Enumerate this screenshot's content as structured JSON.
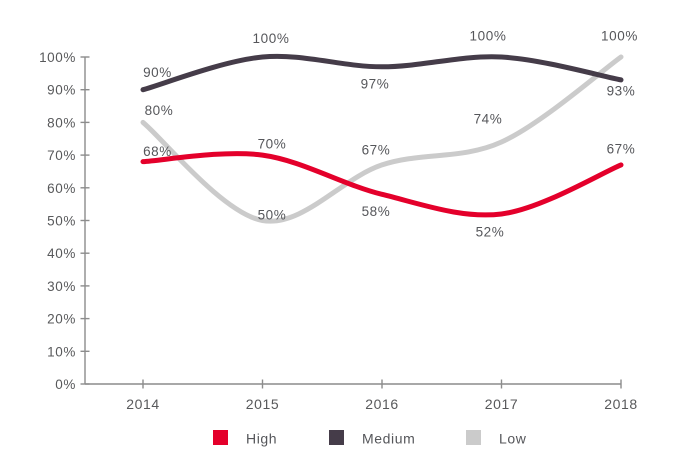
{
  "chart_data": {
    "type": "line",
    "title": "",
    "xlabel": "",
    "ylabel": "",
    "x": [
      "2014",
      "2015",
      "2016",
      "2017",
      "2018"
    ],
    "series": [
      {
        "name": "High",
        "color": "#e4002b",
        "values": [
          68,
          70,
          58,
          52,
          67
        ],
        "point_labels": [
          "68%",
          "70%",
          "58%",
          "52%",
          "67%"
        ],
        "label_offsets": [
          [
            14.5,
            -10
          ],
          [
            9.5,
            -11
          ],
          [
            -6,
            17
          ],
          [
            -11.5,
            18
          ],
          [
            0,
            -16
          ]
        ]
      },
      {
        "name": "Medium",
        "color": "#453c49",
        "values": [
          90,
          100,
          97,
          100,
          93
        ],
        "point_labels": [
          "90%",
          "100%",
          "97%",
          "100%",
          "93%"
        ],
        "label_offsets": [
          [
            14.5,
            -17
          ],
          [
            8.5,
            -18.5
          ],
          [
            -7,
            17
          ],
          [
            -13.5,
            -21
          ],
          [
            0,
            11
          ]
        ]
      },
      {
        "name": "Low",
        "color": "#cbcbcb",
        "values": [
          80,
          50,
          67,
          74,
          100
        ],
        "point_labels": [
          "80%",
          "50%",
          "67%",
          "74%",
          "100%"
        ],
        "label_offsets": [
          [
            16,
            -12
          ],
          [
            9.5,
            -5.5
          ],
          [
            -6,
            -15
          ],
          [
            -13.5,
            -23
          ],
          [
            -1.5,
            -21
          ]
        ]
      }
    ],
    "ylim": [
      0,
      100
    ],
    "y_tick_step": 10,
    "y_tick_labels": [
      "0%",
      "10%",
      "20%",
      "30%",
      "40%",
      "50%",
      "60%",
      "70%",
      "80%",
      "90%",
      "100%"
    ],
    "grid": false,
    "curve": "smooth",
    "legend_position": "bottom",
    "legend": [
      "High",
      "Medium",
      "Low"
    ],
    "colors": {
      "axis": "#8c8c8c",
      "tick_text": "#58595b",
      "data_label_text": "#55565a",
      "background": "#ffffff"
    }
  }
}
